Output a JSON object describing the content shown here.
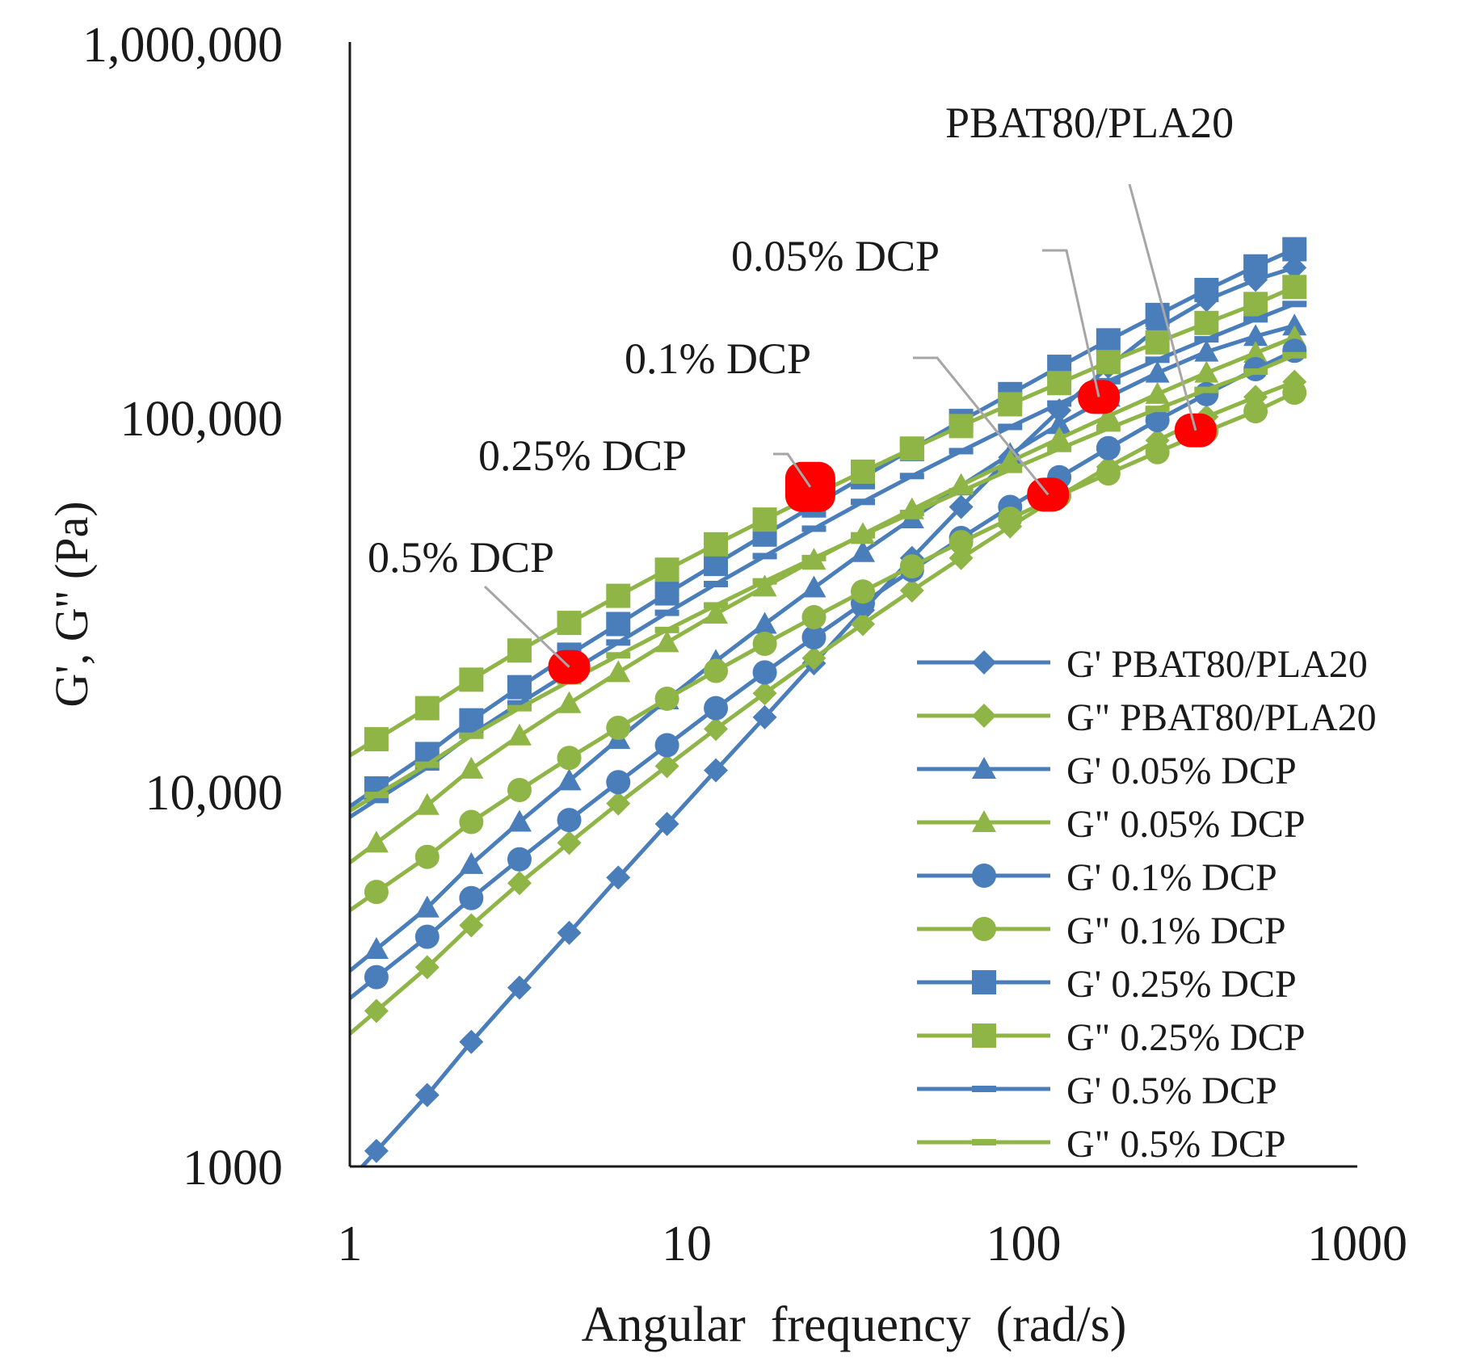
{
  "chart_data": {
    "type": "line",
    "title": "",
    "xlabel": "Angular  frequency  (rad/s)",
    "ylabel": "G', G'' (Pa)",
    "xscale": "log",
    "yscale": "log",
    "xlim": [
      1,
      1000
    ],
    "ylim": [
      1000,
      1000000
    ],
    "x_ticks": [
      1,
      10,
      100,
      1000
    ],
    "x_tick_labels": [
      "1",
      "10",
      "100",
      "1000"
    ],
    "y_ticks": [
      1000,
      10000,
      100000,
      1000000
    ],
    "y_tick_labels": [
      "1000",
      "10,000",
      "100,000",
      "1,000,000"
    ],
    "grid": false,
    "legend_position": "bottom-right",
    "x": [
      1.2,
      1.7,
      2.3,
      3.2,
      4.5,
      6.3,
      8.8,
      12.3,
      17.2,
      24.1,
      33.7,
      47.2,
      66.1,
      92.5,
      129.6,
      181.4,
      254,
      355.6,
      497.8,
      650
    ],
    "series": [
      {
        "name": "G' PBAT80/PLA20",
        "color": "#4a7ebb",
        "marker": "diamond",
        "values": [
          1100,
          1550,
          2150,
          3000,
          4200,
          5900,
          8200,
          11400,
          15800,
          22000,
          30500,
          42000,
          57500,
          78000,
          104000,
          136000,
          172000,
          205000,
          232000,
          250000
        ]
      },
      {
        "name": "G\" PBAT80/PLA20",
        "color": "#8fb547",
        "marker": "diamond",
        "values": [
          2600,
          3400,
          4400,
          5700,
          7300,
          9300,
          11700,
          14700,
          18300,
          22700,
          28000,
          34400,
          42000,
          51000,
          61500,
          73500,
          86500,
          100000,
          113000,
          124000
        ]
      },
      {
        "name": "G' 0.05% DCP",
        "color": "#4a7ebb",
        "marker": "triangle",
        "values": [
          3800,
          4900,
          6400,
          8300,
          10700,
          13800,
          17600,
          22300,
          28000,
          35000,
          43500,
          53500,
          65500,
          79500,
          95500,
          113000,
          131000,
          149000,
          164000,
          175000
        ]
      },
      {
        "name": "G\" 0.05% DCP",
        "color": "#8fb547",
        "marker": "triangle",
        "values": [
          7300,
          9200,
          11500,
          14100,
          17200,
          20800,
          25000,
          29800,
          35200,
          41500,
          48600,
          56600,
          65700,
          76000,
          87500,
          100500,
          115000,
          131000,
          148000,
          163000
        ]
      },
      {
        "name": "G' 0.1% DCP",
        "color": "#4a7ebb",
        "marker": "circle",
        "values": [
          3200,
          4100,
          5200,
          6600,
          8400,
          10600,
          13300,
          16700,
          20800,
          25800,
          31800,
          39000,
          47500,
          57500,
          69000,
          82500,
          98000,
          115000,
          134000,
          150000
        ]
      },
      {
        "name": "G\" 0.1% DCP",
        "color": "#8fb547",
        "marker": "circle",
        "values": [
          5400,
          6700,
          8300,
          10100,
          12300,
          14800,
          17700,
          21000,
          24800,
          29200,
          34200,
          39900,
          46300,
          53500,
          61600,
          70600,
          80500,
          91500,
          103500,
          116000
        ]
      },
      {
        "name": "G' 0.25% DCP",
        "color": "#4a7ebb",
        "marker": "square",
        "values": [
          10200,
          12600,
          15500,
          19000,
          23200,
          28000,
          33800,
          40500,
          48500,
          58000,
          69000,
          82000,
          97500,
          115000,
          136000,
          160000,
          187000,
          218000,
          252000,
          280000
        ]
      },
      {
        "name": "G\" 0.25% DCP",
        "color": "#8fb547",
        "marker": "square",
        "values": [
          13800,
          16700,
          19900,
          23800,
          28200,
          33300,
          39100,
          45700,
          53200,
          61800,
          71400,
          82300,
          94500,
          108000,
          123000,
          140000,
          158000,
          178000,
          200000,
          222000
        ]
      },
      {
        "name": "G' 0.5% DCP",
        "color": "#4a7ebb",
        "marker": "dash",
        "values": [
          9500,
          11600,
          14200,
          17200,
          20800,
          25000,
          30000,
          35800,
          42500,
          50300,
          59300,
          69500,
          81000,
          94000,
          108500,
          124500,
          142000,
          161000,
          182000,
          200000
        ]
      },
      {
        "name": "G\" 0.5% DCP",
        "color": "#8fb547",
        "marker": "dash",
        "values": [
          9800,
          11800,
          14100,
          16700,
          19700,
          23100,
          27000,
          31400,
          36400,
          42000,
          48300,
          55400,
          63300,
          72200,
          82100,
          93100,
          105000,
          118000,
          132000,
          146000
        ]
      }
    ],
    "annotations": [
      {
        "text": "PBAT80/PLA20",
        "x": 330,
        "y": 92000
      },
      {
        "text": "0.05% DCP",
        "x": 170,
        "y": 113000
      },
      {
        "text": "0.1% DCP",
        "x": 120,
        "y": 62000
      },
      {
        "text": "0.25% DCP",
        "x": 23.5,
        "y": 65000
      },
      {
        "text": "0.5% DCP",
        "x": 4.5,
        "y": 21500
      }
    ],
    "highlight_color": "#ff0000",
    "leader_color": "#a6a6a6",
    "axis_color": "#1a1a1a"
  }
}
